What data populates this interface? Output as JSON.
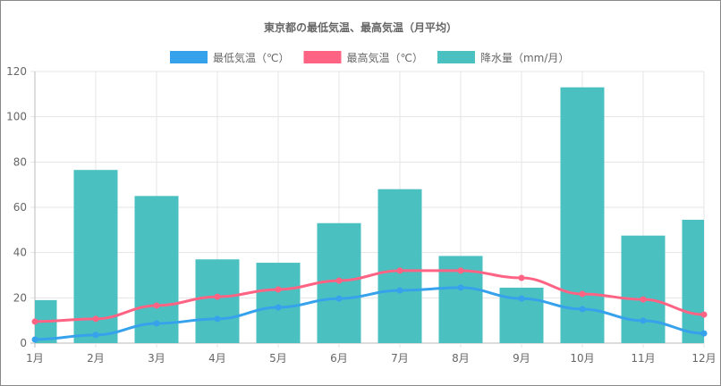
{
  "chart_data": {
    "type": "bar",
    "title": "東京都の最低気温、最高気温（月平均）",
    "categories": [
      "1月",
      "2月",
      "3月",
      "4月",
      "5月",
      "6月",
      "7月",
      "8月",
      "9月",
      "10月",
      "11月",
      "12月"
    ],
    "ylim": [
      0,
      120
    ],
    "yticks": [
      0,
      20,
      40,
      60,
      80,
      100,
      120
    ],
    "grid": true,
    "legend_position": "top",
    "series": [
      {
        "name": "最低気温（℃）",
        "type": "line",
        "color": "#36A2EB",
        "values": [
          1.6,
          3.6,
          8.7,
          10.7,
          15.8,
          19.7,
          23.3,
          24.5,
          19.7,
          15.0,
          9.9,
          4.3
        ]
      },
      {
        "name": "最高気温（℃）",
        "type": "line",
        "color": "#FF6384",
        "values": [
          9.5,
          10.7,
          16.6,
          20.5,
          23.7,
          27.6,
          32.0,
          32.0,
          28.8,
          21.7,
          19.3,
          12.6
        ]
      },
      {
        "name": "降水量（mm/月）",
        "type": "bar",
        "color": "#4BC0C0",
        "values": [
          19.0,
          76.5,
          65.0,
          37.0,
          35.5,
          53.0,
          68.0,
          38.5,
          24.5,
          113.0,
          47.5,
          54.5
        ]
      }
    ]
  }
}
